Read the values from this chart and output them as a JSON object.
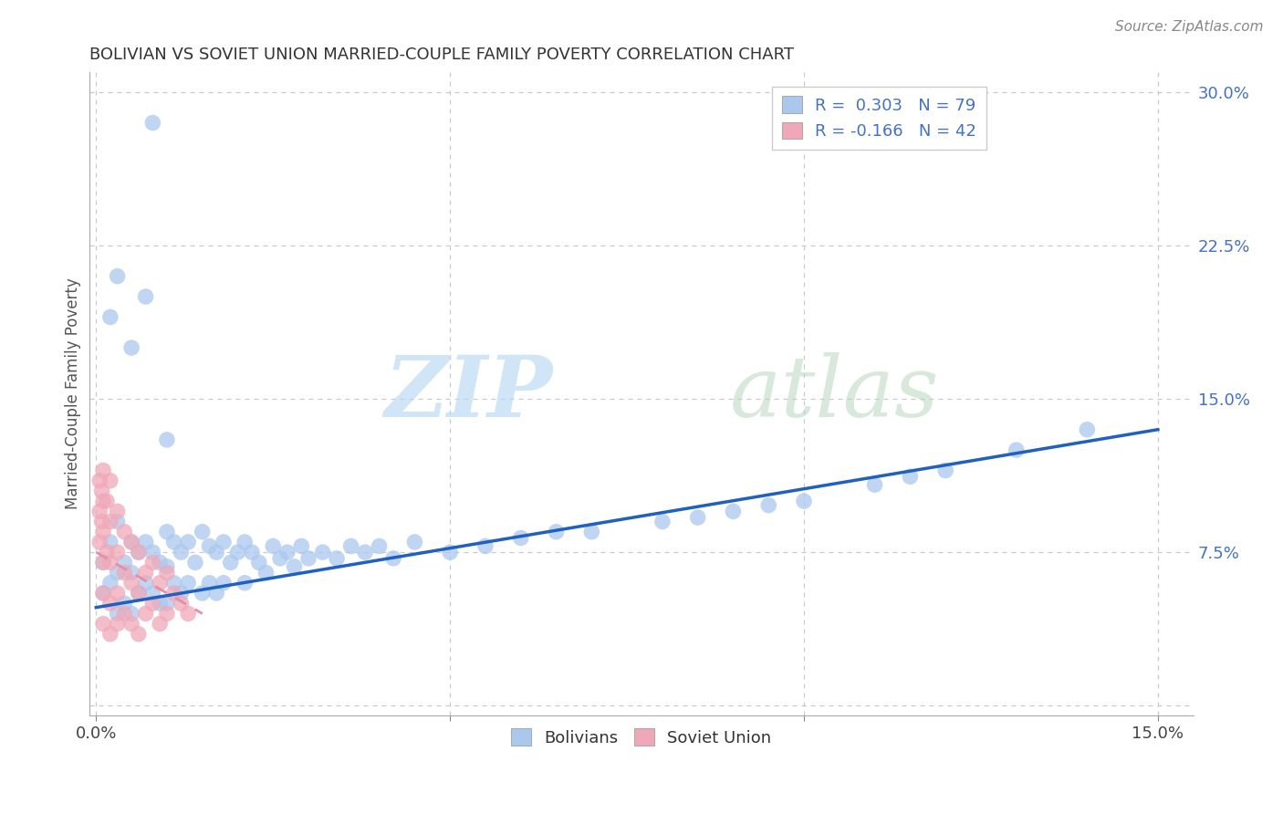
{
  "title": "BOLIVIAN VS SOVIET UNION MARRIED-COUPLE FAMILY POVERTY CORRELATION CHART",
  "source": "Source: ZipAtlas.com",
  "ylabel": "Married-Couple Family Poverty",
  "xlim": [
    -0.001,
    0.155
  ],
  "ylim": [
    -0.005,
    0.31
  ],
  "xticks": [
    0.0,
    0.05,
    0.1,
    0.15
  ],
  "xtick_labels": [
    "0.0%",
    "",
    "",
    "15.0%"
  ],
  "yticks": [
    0.0,
    0.075,
    0.15,
    0.225,
    0.3
  ],
  "ytick_labels": [
    "",
    "7.5%",
    "15.0%",
    "22.5%",
    "30.0%"
  ],
  "blue_color": "#aac8ee",
  "pink_color": "#f0a8b8",
  "blue_line_color": "#2060c0",
  "pink_line_color": "#e090a8",
  "grid_color": "#c8c8d8",
  "blue_scatter_edge": "none",
  "pink_scatter_edge": "none",
  "bolivians_x": [
    0.001,
    0.001,
    0.002,
    0.002,
    0.003,
    0.003,
    0.003,
    0.004,
    0.004,
    0.005,
    0.005,
    0.005,
    0.006,
    0.006,
    0.007,
    0.007,
    0.008,
    0.008,
    0.009,
    0.009,
    0.01,
    0.01,
    0.01,
    0.011,
    0.011,
    0.012,
    0.012,
    0.013,
    0.013,
    0.014,
    0.015,
    0.015,
    0.016,
    0.016,
    0.017,
    0.017,
    0.018,
    0.018,
    0.019,
    0.02,
    0.021,
    0.021,
    0.022,
    0.023,
    0.024,
    0.025,
    0.026,
    0.027,
    0.028,
    0.029,
    0.03,
    0.032,
    0.034,
    0.036,
    0.038,
    0.04,
    0.042,
    0.045,
    0.05,
    0.055,
    0.06,
    0.065,
    0.07,
    0.08,
    0.085,
    0.09,
    0.095,
    0.1,
    0.11,
    0.115,
    0.12,
    0.13,
    0.14,
    0.002,
    0.003,
    0.005,
    0.007,
    0.008,
    0.01
  ],
  "bolivians_y": [
    0.07,
    0.055,
    0.08,
    0.06,
    0.09,
    0.065,
    0.045,
    0.07,
    0.05,
    0.08,
    0.065,
    0.045,
    0.075,
    0.055,
    0.08,
    0.06,
    0.075,
    0.055,
    0.07,
    0.05,
    0.085,
    0.068,
    0.05,
    0.08,
    0.06,
    0.075,
    0.055,
    0.08,
    0.06,
    0.07,
    0.085,
    0.055,
    0.078,
    0.06,
    0.075,
    0.055,
    0.08,
    0.06,
    0.07,
    0.075,
    0.08,
    0.06,
    0.075,
    0.07,
    0.065,
    0.078,
    0.072,
    0.075,
    0.068,
    0.078,
    0.072,
    0.075,
    0.072,
    0.078,
    0.075,
    0.078,
    0.072,
    0.08,
    0.075,
    0.078,
    0.082,
    0.085,
    0.085,
    0.09,
    0.092,
    0.095,
    0.098,
    0.1,
    0.108,
    0.112,
    0.115,
    0.125,
    0.135,
    0.19,
    0.21,
    0.175,
    0.2,
    0.285,
    0.13
  ],
  "soviet_x": [
    0.0005,
    0.0005,
    0.0005,
    0.0008,
    0.0008,
    0.001,
    0.001,
    0.001,
    0.001,
    0.001,
    0.001,
    0.0015,
    0.0015,
    0.002,
    0.002,
    0.002,
    0.002,
    0.002,
    0.003,
    0.003,
    0.003,
    0.003,
    0.004,
    0.004,
    0.004,
    0.005,
    0.005,
    0.005,
    0.006,
    0.006,
    0.006,
    0.007,
    0.007,
    0.008,
    0.008,
    0.009,
    0.009,
    0.01,
    0.01,
    0.011,
    0.012,
    0.013
  ],
  "soviet_y": [
    0.11,
    0.095,
    0.08,
    0.105,
    0.09,
    0.115,
    0.1,
    0.085,
    0.07,
    0.055,
    0.04,
    0.1,
    0.075,
    0.11,
    0.09,
    0.07,
    0.05,
    0.035,
    0.095,
    0.075,
    0.055,
    0.04,
    0.085,
    0.065,
    0.045,
    0.08,
    0.06,
    0.04,
    0.075,
    0.055,
    0.035,
    0.065,
    0.045,
    0.07,
    0.05,
    0.06,
    0.04,
    0.065,
    0.045,
    0.055,
    0.05,
    0.045
  ],
  "blue_line_x0": 0.0,
  "blue_line_y0": 0.048,
  "blue_line_x1": 0.15,
  "blue_line_y1": 0.135,
  "pink_line_x0": 0.0,
  "pink_line_y0": 0.075,
  "pink_line_x1": 0.015,
  "pink_line_y1": 0.045
}
